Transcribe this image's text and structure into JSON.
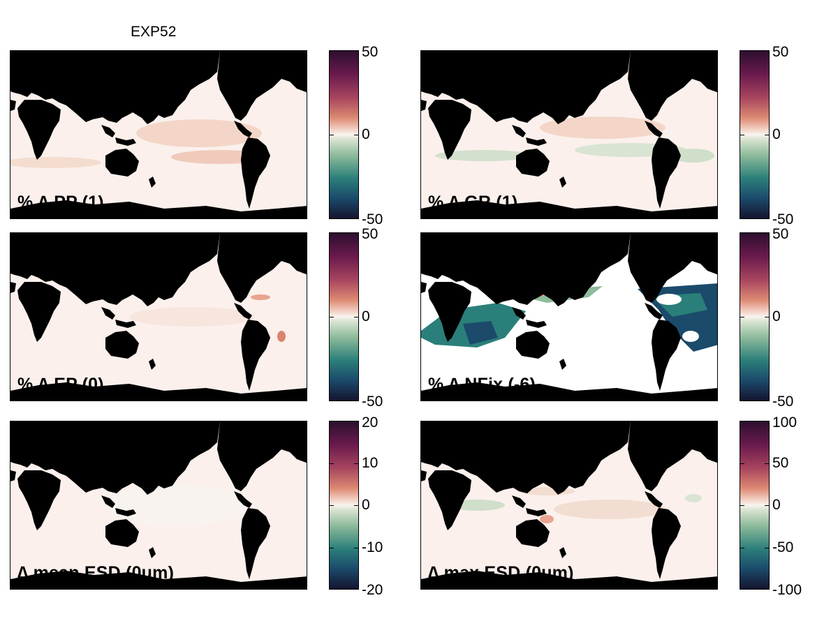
{
  "figure_title": "EXP52",
  "colors": {
    "land": "#000000",
    "ocean_baseline": "#fbf0ec",
    "positive": "#e9a48e",
    "negative": "#2b7f7a"
  },
  "panels": [
    {
      "label": "% ∆ PP (1)",
      "colorbar_ticks": [
        "50",
        "0",
        "-50"
      ]
    },
    {
      "label": "% ∆ GR (1)",
      "colorbar_ticks": [
        "50",
        "0",
        "-50"
      ]
    },
    {
      "label": "% ∆ EP (0)",
      "colorbar_ticks": [
        "50",
        "0",
        "-50"
      ]
    },
    {
      "label": "% ∆ NFix (-6)",
      "colorbar_ticks": [
        "50",
        "0",
        "-50"
      ]
    },
    {
      "label": "∆ mean ESD (0um)",
      "colorbar_ticks": [
        "20",
        "10",
        "0",
        "-10",
        "-20"
      ]
    },
    {
      "label": "∆ max ESD (0um)",
      "colorbar_ticks": [
        "100",
        "50",
        "0",
        "-50",
        "-100"
      ]
    }
  ]
}
